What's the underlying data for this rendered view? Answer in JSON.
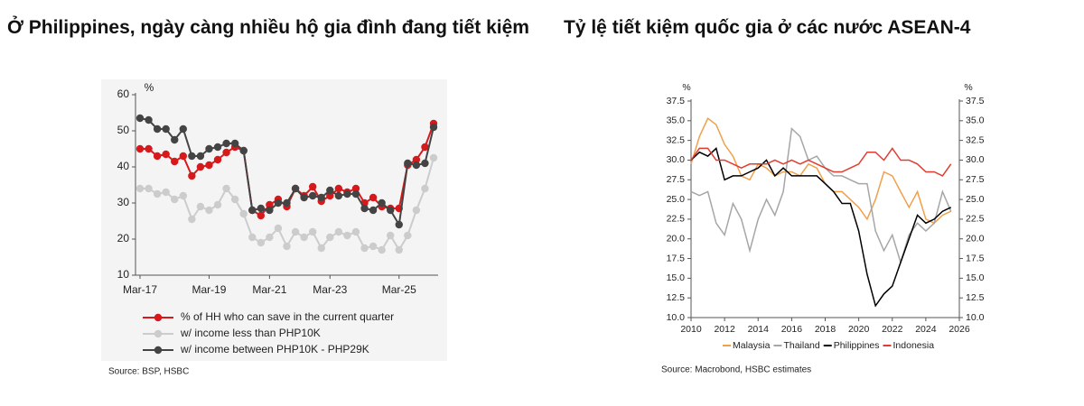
{
  "chart_data": [
    {
      "type": "line",
      "title": "Ở Philippines, ngày càng nhiều hộ gia đình đang tiết kiệm",
      "y_unit": "%",
      "categories": [
        "Mar-17",
        null,
        null,
        null,
        null,
        null,
        null,
        null,
        "Mar-19",
        null,
        null,
        null,
        null,
        null,
        null,
        "Mar-21",
        null,
        null,
        null,
        null,
        null,
        null,
        "Mar-23",
        null,
        null,
        null,
        null,
        null,
        null,
        null,
        "Mar-25",
        null,
        null,
        null,
        null
      ],
      "series": [
        {
          "name": "% of HH who can save in the current quarter",
          "color": "#d7191c",
          "values": [
            45,
            45,
            43,
            43.5,
            41.5,
            43,
            37.5,
            40,
            40.5,
            42,
            44,
            45.5,
            44.5,
            28,
            26.5,
            29.5,
            31,
            29,
            34,
            32,
            34.5,
            30.5,
            32,
            34,
            33,
            34,
            30,
            31.5,
            29,
            28.5,
            28.5,
            40.5,
            42,
            45.5,
            52
          ]
        },
        {
          "name": "w/ income less than PHP10K",
          "color": "#cccccc",
          "values": [
            34,
            34,
            32.5,
            33,
            31,
            32,
            25.5,
            29,
            28,
            29.5,
            34,
            31,
            27,
            20.5,
            19,
            20.5,
            23,
            18,
            22,
            20.5,
            22,
            17.5,
            20.5,
            22,
            21,
            22,
            17.5,
            18,
            17,
            21,
            17,
            21,
            28,
            34,
            42.5
          ]
        },
        {
          "name": "w/ income between PHP10K - PHP29K",
          "color": "#444444",
          "values": [
            53.5,
            53,
            50.5,
            50.5,
            47.5,
            50.5,
            43,
            43,
            45,
            45.5,
            46.5,
            46.5,
            44.5,
            28,
            28.5,
            28,
            30,
            30,
            34,
            31.5,
            32,
            31.5,
            33.5,
            32,
            32.5,
            32.5,
            28.5,
            28,
            30,
            28,
            24,
            41,
            40.5,
            41,
            51
          ]
        }
      ],
      "ylim": [
        10,
        60
      ],
      "yticks": [
        10,
        20,
        30,
        40,
        50,
        60
      ],
      "grid": false,
      "markers": true,
      "source": "Source:  BSP, HSBC"
    },
    {
      "type": "line",
      "title": "Tỷ lệ tiết kiệm quốc gia ở các nước ASEAN-4",
      "y_unit": "%",
      "y2_unit": "%",
      "x": [
        2010,
        2010.5,
        2011,
        2011.5,
        2012,
        2012.5,
        2013,
        2013.5,
        2014,
        2014.5,
        2015,
        2015.5,
        2016,
        2016.5,
        2017,
        2017.5,
        2018,
        2018.5,
        2019,
        2019.5,
        2020,
        2020.5,
        2021,
        2021.5,
        2022,
        2022.5,
        2023,
        2023.5,
        2024,
        2024.5,
        2025,
        2025.5
      ],
      "series": [
        {
          "name": "Malaysia",
          "color": "#f0a04b",
          "values": [
            29.5,
            33,
            35.3,
            34.5,
            32,
            30.5,
            28,
            27.5,
            29.5,
            29,
            28,
            28.5,
            28.5,
            28,
            29.5,
            29,
            27,
            26,
            26,
            25,
            24,
            22.5,
            25,
            28.5,
            28,
            26,
            24,
            26,
            22.5,
            22,
            23,
            23.5
          ]
        },
        {
          "name": "Thailand",
          "color": "#a6a6a6",
          "values": [
            26,
            25.5,
            26,
            22,
            20.5,
            24.5,
            22.5,
            18.5,
            22.5,
            25,
            23,
            26,
            34,
            33,
            30,
            30.5,
            29,
            28,
            28,
            27.5,
            27,
            27,
            21,
            18.5,
            20.5,
            17,
            20.5,
            22,
            21,
            22,
            26,
            23.5
          ]
        },
        {
          "name": "Philippines",
          "color": "#000000",
          "values": [
            30,
            31,
            30.5,
            31.5,
            27.5,
            28,
            28,
            28.5,
            29,
            30,
            28,
            29,
            28,
            28,
            28,
            28,
            27,
            26,
            24.5,
            24.5,
            21,
            15.5,
            11.5,
            13,
            14,
            17,
            20,
            23,
            22,
            22.5,
            23.5,
            24
          ]
        },
        {
          "name": "Indonesia",
          "color": "#e03c31",
          "values": [
            30,
            31.5,
            31.5,
            30,
            30,
            29.5,
            29,
            29.5,
            29.5,
            29.5,
            30,
            29.5,
            30,
            29.5,
            30,
            29.5,
            29,
            28.5,
            28.5,
            29,
            29.5,
            31,
            31,
            30,
            31.5,
            30,
            30,
            29.5,
            28.5,
            28.5,
            28,
            29.5
          ]
        }
      ],
      "xlim": [
        2010,
        2026
      ],
      "xticks": [
        2010,
        2012,
        2014,
        2016,
        2018,
        2020,
        2022,
        2024,
        2026
      ],
      "ylim": [
        10,
        37.5
      ],
      "yticks": [
        {
          "value": 10,
          "label": "10.0"
        },
        12.5,
        {
          "value": 15,
          "label": "15.0"
        },
        17.5,
        {
          "value": 20,
          "label": "20.0"
        },
        22.5,
        {
          "value": 25,
          "label": "25.0"
        },
        27.5,
        {
          "value": 30,
          "label": "30.0"
        },
        32.5,
        {
          "value": 35,
          "label": "35.0"
        },
        37.5
      ],
      "y2lim": [
        10,
        37.5
      ],
      "y2ticks": [
        {
          "value": 10,
          "label": "10.0"
        },
        12.5,
        {
          "value": 15,
          "label": "15.0"
        },
        17.5,
        {
          "value": 20,
          "label": "20.0"
        },
        22.5,
        {
          "value": 25,
          "label": "25.0"
        },
        27.5,
        {
          "value": 30,
          "label": "30.0"
        },
        32.5,
        {
          "value": 35,
          "label": "35.0"
        },
        37.5
      ],
      "grid": false,
      "markers": false,
      "source": "Source:  Macrobond, HSBC estimates"
    }
  ]
}
